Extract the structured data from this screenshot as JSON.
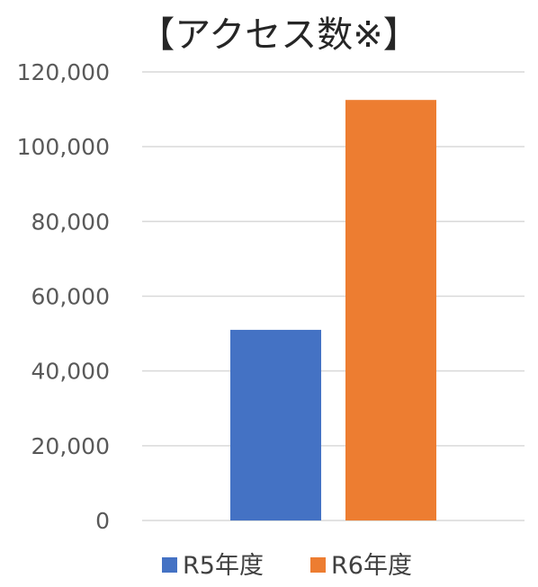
{
  "chart_data": {
    "type": "bar",
    "title": "【アクセス数※】",
    "categories": [
      ""
    ],
    "series": [
      {
        "name": "R5年度",
        "values": [
          51000
        ],
        "color": "#4472c4"
      },
      {
        "name": "R6年度",
        "values": [
          112500
        ],
        "color": "#ed7d31"
      }
    ],
    "xlabel": "",
    "ylabel": "",
    "ylim": [
      0,
      120000
    ],
    "yticks": [
      "0",
      "20,000",
      "40,000",
      "60,000",
      "80,000",
      "100,000",
      "120,000"
    ],
    "grid": true,
    "legend": "bottom"
  }
}
